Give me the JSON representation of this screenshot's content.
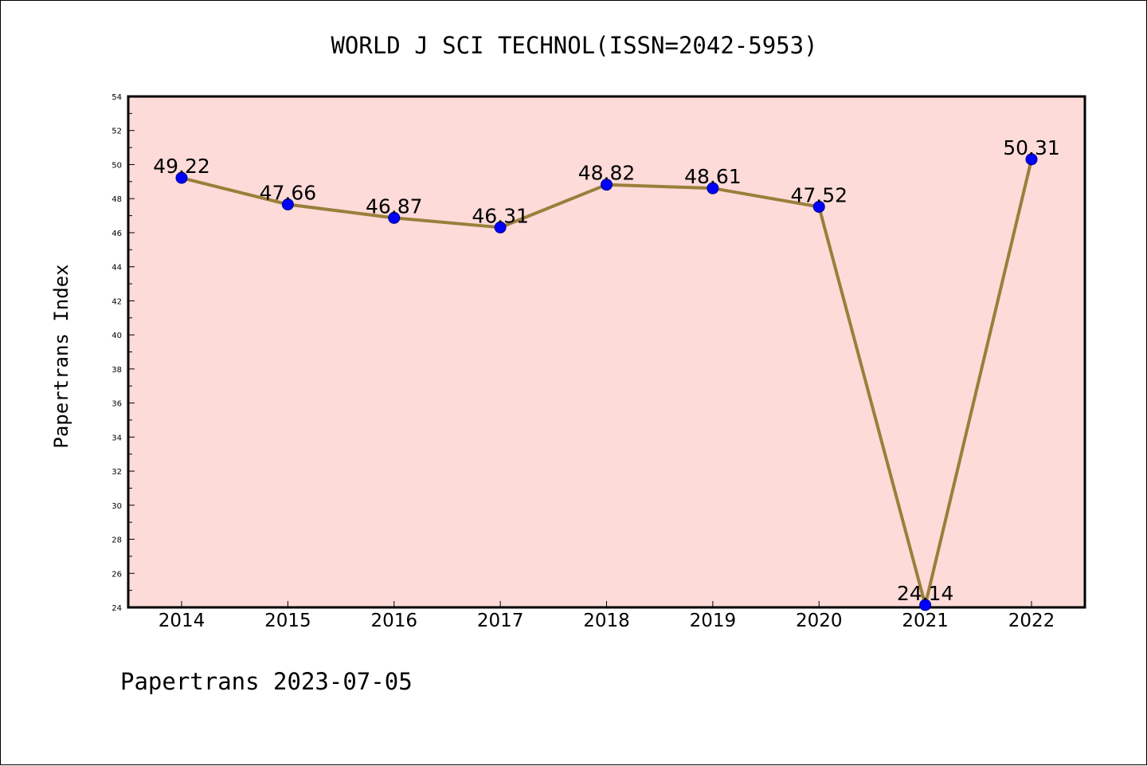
{
  "chart_data": {
    "type": "line",
    "title": "WORLD J SCI TECHNOL(ISSN=2042-5953)",
    "xlabel": "",
    "ylabel": "Papertrans Index",
    "footer": "Papertrans 2023-07-05",
    "categories": [
      "2014",
      "2015",
      "2016",
      "2017",
      "2018",
      "2019",
      "2020",
      "2021",
      "2022"
    ],
    "values": [
      49.22,
      47.66,
      46.87,
      46.31,
      48.82,
      48.61,
      47.52,
      24.14,
      50.31
    ],
    "data_labels": [
      "49.22",
      "47.66",
      "46.87",
      "46.31",
      "48.82",
      "48.61",
      "47.52",
      "24.14",
      "50.31"
    ],
    "ylim": [
      24,
      54
    ],
    "yticks": [
      "24",
      "26",
      "28",
      "30",
      "32",
      "34",
      "36",
      "38",
      "40",
      "42",
      "44",
      "46",
      "48",
      "50",
      "52",
      "54"
    ],
    "grid": false,
    "legend": "none",
    "colors": {
      "plot_background": "#fddbd9",
      "line": "#9a7f3b",
      "marker": "#0000ff",
      "axis": "#000000"
    }
  }
}
